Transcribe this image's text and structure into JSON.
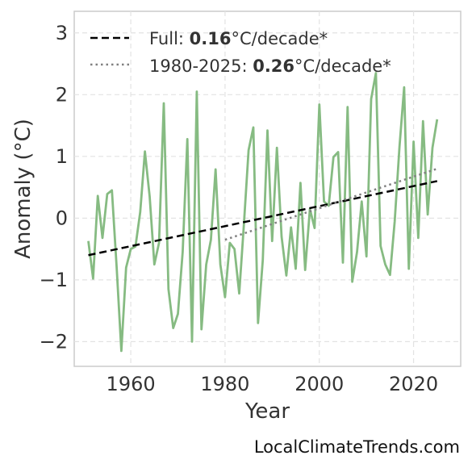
{
  "chart_data": {
    "type": "line",
    "title": "",
    "xlabel": "Year",
    "ylabel": "Anomaly (°C)",
    "xlim": [
      1948,
      2030
    ],
    "ylim": [
      -2.4,
      3.35
    ],
    "xticks": [
      1960,
      1980,
      2000,
      2020
    ],
    "yticks": [
      -2,
      -1,
      0,
      1,
      2,
      3
    ],
    "ytick_labels": [
      "−2",
      "−1",
      "0",
      "1",
      "2",
      "3"
    ],
    "grid": true,
    "legend_position": "top-left",
    "series": [
      {
        "color": "#86bb82",
        "x": [
          1951,
          1952,
          1953,
          1954,
          1955,
          1956,
          1957,
          1958,
          1959,
          1960,
          1961,
          1962,
          1963,
          1964,
          1965,
          1966,
          1967,
          1968,
          1969,
          1970,
          1971,
          1972,
          1973,
          1974,
          1975,
          1976,
          1977,
          1978,
          1979,
          1980,
          1981,
          1982,
          1983,
          1984,
          1985,
          1986,
          1987,
          1988,
          1989,
          1990,
          1991,
          1992,
          1993,
          1994,
          1995,
          1996,
          1997,
          1998,
          1999,
          2000,
          2001,
          2002,
          2003,
          2004,
          2005,
          2006,
          2007,
          2008,
          2009,
          2010,
          2011,
          2012,
          2013,
          2014,
          2015,
          2016,
          2017,
          2018,
          2019,
          2020,
          2021,
          2022,
          2023,
          2024,
          2025
        ],
        "y": [
          -0.37,
          -0.98,
          0.36,
          -0.32,
          0.39,
          0.45,
          -0.8,
          -2.15,
          -0.8,
          -0.5,
          -0.46,
          0.1,
          1.08,
          0.35,
          -0.75,
          -0.4,
          1.86,
          -1.15,
          -1.78,
          -1.55,
          -0.55,
          1.28,
          -2.0,
          2.05,
          -1.8,
          -0.75,
          -0.35,
          0.79,
          -0.75,
          -1.28,
          -0.4,
          -0.5,
          -1.22,
          -0.1,
          1.1,
          1.47,
          -1.7,
          -0.68,
          1.42,
          -0.37,
          1.14,
          -0.3,
          -0.93,
          -0.15,
          -0.82,
          0.57,
          -0.84,
          0.15,
          -0.16,
          1.84,
          0.27,
          0.2,
          0.99,
          1.07,
          -0.72,
          1.8,
          -1.03,
          -0.55,
          0.27,
          -0.62,
          1.93,
          2.35,
          -0.45,
          -0.75,
          -0.92,
          -0.05,
          1.15,
          2.12,
          -0.82,
          1.24,
          -0.32,
          1.57,
          0.06,
          1.14,
          1.6
        ]
      }
    ],
    "trendlines": [
      {
        "name_prefix": "Full: ",
        "name_value": "0.16",
        "name_suffix": "°C/decade*",
        "style": "dashed",
        "color": "#000000",
        "x": [
          1951,
          2025
        ],
        "y": [
          -0.6,
          0.6
        ]
      },
      {
        "name_prefix": "1980-2025: ",
        "name_value": "0.26",
        "name_suffix": "°C/decade*",
        "style": "dotted",
        "color": "#808080",
        "x": [
          1980,
          2025
        ],
        "y": [
          -0.35,
          0.8
        ]
      }
    ]
  },
  "watermark": "LocalClimateTrends.com"
}
